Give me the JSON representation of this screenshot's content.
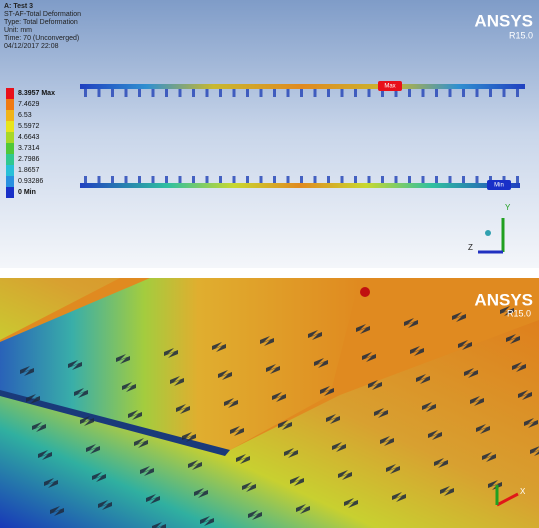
{
  "top_panel": {
    "header": [
      "A: Test 3",
      "ST-AF-Total Deformation",
      "Type: Total Deformation",
      "Unit: mm",
      "Time: 70 (Unconverged)",
      "04/12/2017 22:08"
    ],
    "logo": "ANSYS",
    "version": "R15.0",
    "legend": [
      "8.3957 Max",
      "7.4629",
      "6.53",
      "5.5972",
      "4.6643",
      "3.7314",
      "2.7986",
      "1.8657",
      "0.93286",
      "0 Min"
    ],
    "legend_colors": [
      "#e8101a",
      "#f07a12",
      "#f0b418",
      "#e8e41c",
      "#a8d828",
      "#50c838",
      "#30c890",
      "#28c0d8",
      "#2890e0",
      "#1830c8"
    ],
    "markers": {
      "max": "Max",
      "min": "Min"
    },
    "axes": {
      "y": "Y",
      "z": "Z"
    }
  },
  "bottom_panel": {
    "logo": "ANSYS",
    "version": "R15.0",
    "axes": {
      "x": "X"
    }
  }
}
